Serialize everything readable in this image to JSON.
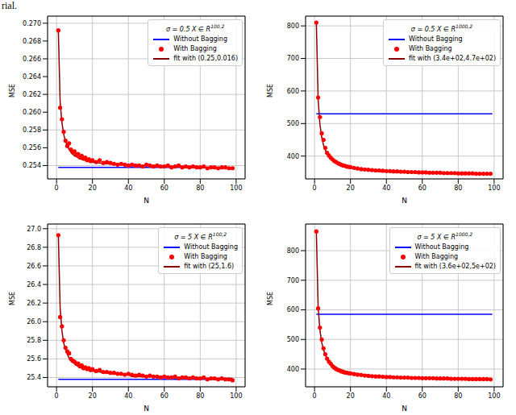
{
  "text": "rial.",
  "chart_data": [
    {
      "type": "scatter",
      "title": "σ = 0.5  X ∈ R",
      "title_sup": "100,2",
      "xlabel": "N",
      "ylabel": "MSE",
      "grid": true,
      "legend": "upper right",
      "xlim": [
        -5,
        105
      ],
      "xticks": [
        0,
        20,
        40,
        60,
        80,
        100
      ],
      "ylim": [
        0.2525,
        0.2708
      ],
      "yticks": [
        0.254,
        0.256,
        0.258,
        {
          "value": 0.26,
          "label": "0.260"
        },
        0.262,
        0.264,
        0.266,
        0.268,
        {
          "value": 0.27,
          "label": "0.270"
        }
      ],
      "x": [
        1,
        2,
        3,
        4,
        5,
        6,
        7,
        8,
        9,
        10,
        11,
        12,
        13,
        14,
        15,
        16,
        17,
        18,
        19,
        20,
        22,
        24,
        26,
        28,
        30,
        32,
        34,
        36,
        38,
        40,
        42,
        44,
        46,
        48,
        50,
        52,
        54,
        56,
        58,
        60,
        62,
        64,
        66,
        68,
        70,
        72,
        74,
        76,
        78,
        80,
        82,
        84,
        86,
        88,
        90,
        92,
        94,
        96,
        98
      ],
      "series": [
        {
          "name": "Without Bagging",
          "type": "line",
          "color": "#0000ff",
          "line_style": "solid",
          "x": [
            1,
            99
          ],
          "values": [
            0.2538,
            0.2538
          ]
        },
        {
          "name": "With Bagging",
          "type": "scatter",
          "marker": "circle",
          "color": "#ff0000",
          "values": [
            0.2692,
            0.2605,
            0.2592,
            0.2578,
            0.2568,
            0.2562,
            0.2565,
            0.2558,
            0.2555,
            0.2556,
            0.2552,
            0.2553,
            0.2549,
            0.2551,
            0.2548,
            0.2549,
            0.2546,
            0.2547,
            0.2545,
            0.2546,
            0.2544,
            0.2546,
            0.2543,
            0.2544,
            0.2543,
            0.2542,
            0.2541,
            0.2542,
            0.2541,
            0.254,
            0.2541,
            0.254,
            0.254,
            0.2539,
            0.2541,
            0.254,
            0.2539,
            0.254,
            0.2539,
            0.2539,
            0.254,
            0.2538,
            0.2539,
            0.254,
            0.2538,
            0.2539,
            0.2538,
            0.2539,
            0.2538,
            0.2538,
            0.2539,
            0.2537,
            0.2538,
            0.2538,
            0.2537,
            0.2538,
            0.2538,
            0.2537,
            0.2537
          ]
        },
        {
          "name": "fit with (0.25,0.016)",
          "type": "line",
          "color": "#8b0000",
          "line_style": "solid",
          "values": [
            0.2692,
            0.2612,
            0.2588,
            0.2575,
            0.2567,
            0.2562,
            0.2558,
            0.2555,
            0.2553,
            0.2551,
            0.255,
            0.2549,
            0.2548,
            0.2547,
            0.2546,
            0.2546,
            0.2545,
            0.2545,
            0.2544,
            0.2544,
            0.2543,
            0.2543,
            0.2542,
            0.2542,
            0.2542,
            0.2541,
            0.2541,
            0.2541,
            0.2541,
            0.254,
            0.254,
            0.254,
            0.254,
            0.254,
            0.254,
            0.254,
            0.254,
            0.254,
            0.254,
            0.2539,
            0.2539,
            0.2539,
            0.2539,
            0.2539,
            0.2539,
            0.2539,
            0.2539,
            0.2539,
            0.2539,
            0.2538,
            0.2538,
            0.2538,
            0.2538,
            0.2538,
            0.2538,
            0.2538,
            0.2538,
            0.2538,
            0.2538
          ]
        }
      ]
    },
    {
      "type": "scatter",
      "title": "σ = 0.5  X ∈ R",
      "title_sup": "1000,2",
      "xlabel": "N",
      "ylabel": "MSE",
      "grid": true,
      "legend": "upper right",
      "xlim": [
        -5,
        105
      ],
      "xticks": [
        0,
        20,
        40,
        60,
        80,
        100
      ],
      "ylim": [
        330,
        830
      ],
      "yticks": [
        400,
        500,
        600,
        700,
        800
      ],
      "x": [
        1,
        2,
        3,
        4,
        5,
        6,
        7,
        8,
        9,
        10,
        11,
        12,
        13,
        14,
        15,
        16,
        17,
        18,
        19,
        20,
        22,
        24,
        26,
        28,
        30,
        32,
        34,
        36,
        38,
        40,
        42,
        44,
        46,
        48,
        50,
        52,
        54,
        56,
        58,
        60,
        62,
        64,
        66,
        68,
        70,
        72,
        74,
        76,
        78,
        80,
        82,
        84,
        86,
        88,
        90,
        92,
        94,
        96,
        98
      ],
      "series": [
        {
          "name": "Without Bagging",
          "type": "line",
          "color": "#0000ff",
          "line_style": "solid",
          "x": [
            1,
            99
          ],
          "values": [
            530,
            530
          ]
        },
        {
          "name": "With Bagging",
          "type": "scatter",
          "marker": "circle",
          "color": "#ff0000",
          "values": [
            810,
            580,
            520,
            470,
            450,
            425,
            410,
            402,
            395,
            390,
            385,
            382,
            378,
            376,
            373,
            371,
            370,
            368,
            367,
            366,
            364,
            362,
            360,
            359,
            358,
            357,
            356,
            356,
            355,
            354,
            354,
            353,
            353,
            352,
            352,
            351,
            351,
            351,
            350,
            350,
            350,
            349,
            349,
            349,
            349,
            348,
            348,
            348,
            348,
            347,
            347,
            347,
            347,
            347,
            346,
            346,
            346,
            346,
            346
          ]
        },
        {
          "name": "fit with (3.4e+02,4.7e+02)",
          "type": "line",
          "color": "#8b0000",
          "line_style": "solid",
          "values": [
            810,
            575,
            497,
            458,
            434,
            418,
            407,
            399,
            392,
            387,
            383,
            379,
            376,
            374,
            371,
            369,
            368,
            366,
            365,
            364,
            361,
            360,
            358,
            357,
            356,
            355,
            354,
            353,
            352,
            352,
            351,
            351,
            350,
            350,
            350,
            349,
            349,
            349,
            348,
            348,
            348,
            348,
            347,
            347,
            347,
            347,
            347,
            346,
            346,
            346,
            346,
            346,
            346,
            345,
            345,
            345,
            345,
            345,
            345
          ]
        }
      ]
    },
    {
      "type": "scatter",
      "title": "σ = 5  X ∈ R",
      "title_sup": "100,2",
      "xlabel": "N",
      "ylabel": "MSE",
      "grid": true,
      "legend": "upper right",
      "xlim": [
        -5,
        105
      ],
      "xticks": [
        0,
        20,
        40,
        60,
        80,
        100
      ],
      "ylim": [
        25.3,
        27.05
      ],
      "yticks": [
        25.4,
        25.6,
        25.8,
        {
          "value": 26,
          "label": "26.0"
        },
        26.2,
        26.4,
        26.6,
        26.8,
        {
          "value": 27,
          "label": "27.0"
        }
      ],
      "x": [
        1,
        2,
        3,
        4,
        5,
        6,
        7,
        8,
        9,
        10,
        11,
        12,
        13,
        14,
        15,
        16,
        17,
        18,
        19,
        20,
        22,
        24,
        26,
        28,
        30,
        32,
        34,
        36,
        38,
        40,
        42,
        44,
        46,
        48,
        50,
        52,
        54,
        56,
        58,
        60,
        62,
        64,
        66,
        68,
        70,
        72,
        74,
        76,
        78,
        80,
        82,
        84,
        86,
        88,
        90,
        92,
        94,
        96,
        98
      ],
      "series": [
        {
          "name": "Without Bagging",
          "type": "line",
          "color": "#0000ff",
          "line_style": "solid",
          "x": [
            1,
            99
          ],
          "values": [
            25.38,
            25.38
          ]
        },
        {
          "name": "With Bagging",
          "type": "scatter",
          "marker": "circle",
          "color": "#ff0000",
          "values": [
            26.93,
            26.05,
            25.95,
            25.8,
            25.72,
            25.68,
            25.66,
            25.6,
            25.58,
            25.57,
            25.55,
            25.55,
            25.52,
            25.53,
            25.5,
            25.51,
            25.49,
            25.5,
            25.48,
            25.49,
            25.47,
            25.48,
            25.46,
            25.46,
            25.45,
            25.45,
            25.44,
            25.44,
            25.43,
            25.44,
            25.43,
            25.42,
            25.43,
            25.42,
            25.41,
            25.42,
            25.41,
            25.41,
            25.4,
            25.41,
            25.4,
            25.4,
            25.41,
            25.39,
            25.4,
            25.4,
            25.39,
            25.4,
            25.39,
            25.39,
            25.4,
            25.38,
            25.39,
            25.39,
            25.38,
            25.39,
            25.38,
            25.38,
            25.37
          ]
        },
        {
          "name": "fit with (25,1.6)",
          "type": "line",
          "color": "#8b0000",
          "line_style": "solid",
          "values": [
            26.93,
            26.15,
            25.9,
            25.77,
            25.7,
            25.65,
            25.61,
            25.58,
            25.56,
            25.55,
            25.53,
            25.52,
            25.51,
            25.5,
            25.49,
            25.49,
            25.48,
            25.48,
            25.47,
            25.47,
            25.46,
            25.46,
            25.45,
            25.45,
            25.44,
            25.44,
            25.44,
            25.43,
            25.43,
            25.43,
            25.41,
            25.41,
            25.41,
            25.41,
            25.41,
            25.41,
            25.41,
            25.41,
            25.41,
            25.4,
            25.4,
            25.4,
            25.4,
            25.4,
            25.4,
            25.4,
            25.4,
            25.4,
            25.4,
            25.39,
            25.39,
            25.39,
            25.39,
            25.39,
            25.39,
            25.39,
            25.39,
            25.39,
            25.39
          ]
        }
      ]
    },
    {
      "type": "scatter",
      "title": "σ = 5  X ∈ R",
      "title_sup": "1000,2",
      "xlabel": "N",
      "ylabel": "MSE",
      "grid": true,
      "legend": "upper right",
      "xlim": [
        -5,
        105
      ],
      "xticks": [
        0,
        20,
        40,
        60,
        80,
        100
      ],
      "ylim": [
        340,
        890
      ],
      "yticks": [
        400,
        500,
        600,
        700,
        800
      ],
      "x": [
        1,
        2,
        3,
        4,
        5,
        6,
        7,
        8,
        9,
        10,
        11,
        12,
        13,
        14,
        15,
        16,
        17,
        18,
        19,
        20,
        22,
        24,
        26,
        28,
        30,
        32,
        34,
        36,
        38,
        40,
        42,
        44,
        46,
        48,
        50,
        52,
        54,
        56,
        58,
        60,
        62,
        64,
        66,
        68,
        70,
        72,
        74,
        76,
        78,
        80,
        82,
        84,
        86,
        88,
        90,
        92,
        94,
        96,
        98
      ],
      "series": [
        {
          "name": "Without Bagging",
          "type": "line",
          "color": "#0000ff",
          "line_style": "solid",
          "x": [
            1,
            99
          ],
          "values": [
            585,
            585
          ]
        },
        {
          "name": "With Bagging",
          "type": "scatter",
          "marker": "circle",
          "color": "#ff0000",
          "values": [
            865,
            605,
            540,
            500,
            470,
            450,
            435,
            425,
            418,
            410,
            405,
            400,
            397,
            395,
            392,
            390,
            388,
            387,
            386,
            385,
            383,
            381,
            380,
            378,
            377,
            376,
            375,
            375,
            374,
            373,
            373,
            372,
            372,
            371,
            371,
            371,
            370,
            370,
            370,
            369,
            369,
            369,
            369,
            368,
            368,
            368,
            368,
            367,
            367,
            367,
            367,
            367,
            366,
            366,
            366,
            366,
            366,
            366,
            365
          ]
        },
        {
          "name": "fit with (3.6e+02,5e+02)",
          "type": "line",
          "color": "#8b0000",
          "line_style": "solid",
          "values": [
            865,
            610,
            530,
            490,
            465,
            448,
            436,
            427,
            420,
            414,
            410,
            406,
            402,
            400,
            397,
            395,
            393,
            392,
            390,
            389,
            386,
            384,
            382,
            381,
            379,
            378,
            377,
            376,
            375,
            375,
            374,
            374,
            373,
            373,
            372,
            372,
            372,
            371,
            371,
            371,
            370,
            370,
            370,
            370,
            369,
            369,
            369,
            369,
            368,
            368,
            368,
            368,
            368,
            367,
            367,
            367,
            367,
            367,
            366
          ]
        }
      ]
    }
  ]
}
